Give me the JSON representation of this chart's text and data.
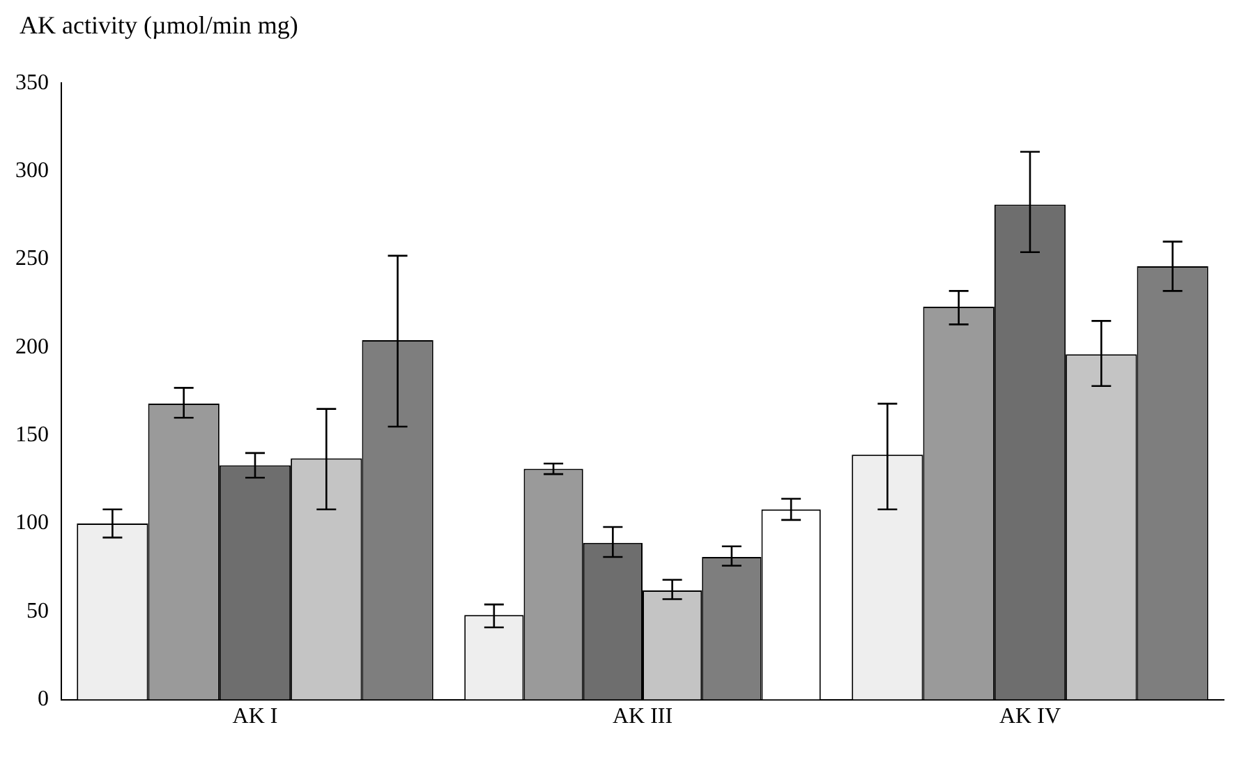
{
  "chart_data": {
    "type": "bar",
    "ylabel": "AK activity (µmol/min mg)",
    "categories": [
      "AK I",
      "AK III",
      "AK IV"
    ],
    "series": [
      {
        "color": "#eeeeee",
        "values": [
          100,
          48,
          139
        ],
        "errors": [
          [
            92,
            108
          ],
          [
            41,
            54
          ],
          [
            108,
            168
          ]
        ]
      },
      {
        "color": "#9a9a9a",
        "values": [
          168,
          131,
          223
        ],
        "errors": [
          [
            160,
            177
          ],
          [
            128,
            134
          ],
          [
            213,
            232
          ]
        ]
      },
      {
        "color": "#6e6e6e",
        "values": [
          133,
          89,
          281
        ],
        "errors": [
          [
            126,
            140
          ],
          [
            81,
            98
          ],
          [
            254,
            311
          ]
        ]
      },
      {
        "color": "#c4c4c4",
        "values": [
          137,
          62,
          196
        ],
        "errors": [
          [
            108,
            165
          ],
          [
            57,
            68
          ],
          [
            178,
            215
          ]
        ]
      },
      {
        "color": "#7e7e7e",
        "values": [
          204,
          81,
          246
        ],
        "errors": [
          [
            155,
            252
          ],
          [
            76,
            87
          ],
          [
            232,
            260
          ]
        ]
      },
      {
        "color": "#ffffff",
        "values": [
          null,
          108,
          null
        ],
        "errors": [
          null,
          [
            102,
            114
          ],
          null
        ]
      }
    ],
    "ylim": [
      0,
      350
    ],
    "yticks": [
      0,
      50,
      100,
      150,
      200,
      250,
      300,
      350
    ],
    "grid": false,
    "legend": false
  }
}
